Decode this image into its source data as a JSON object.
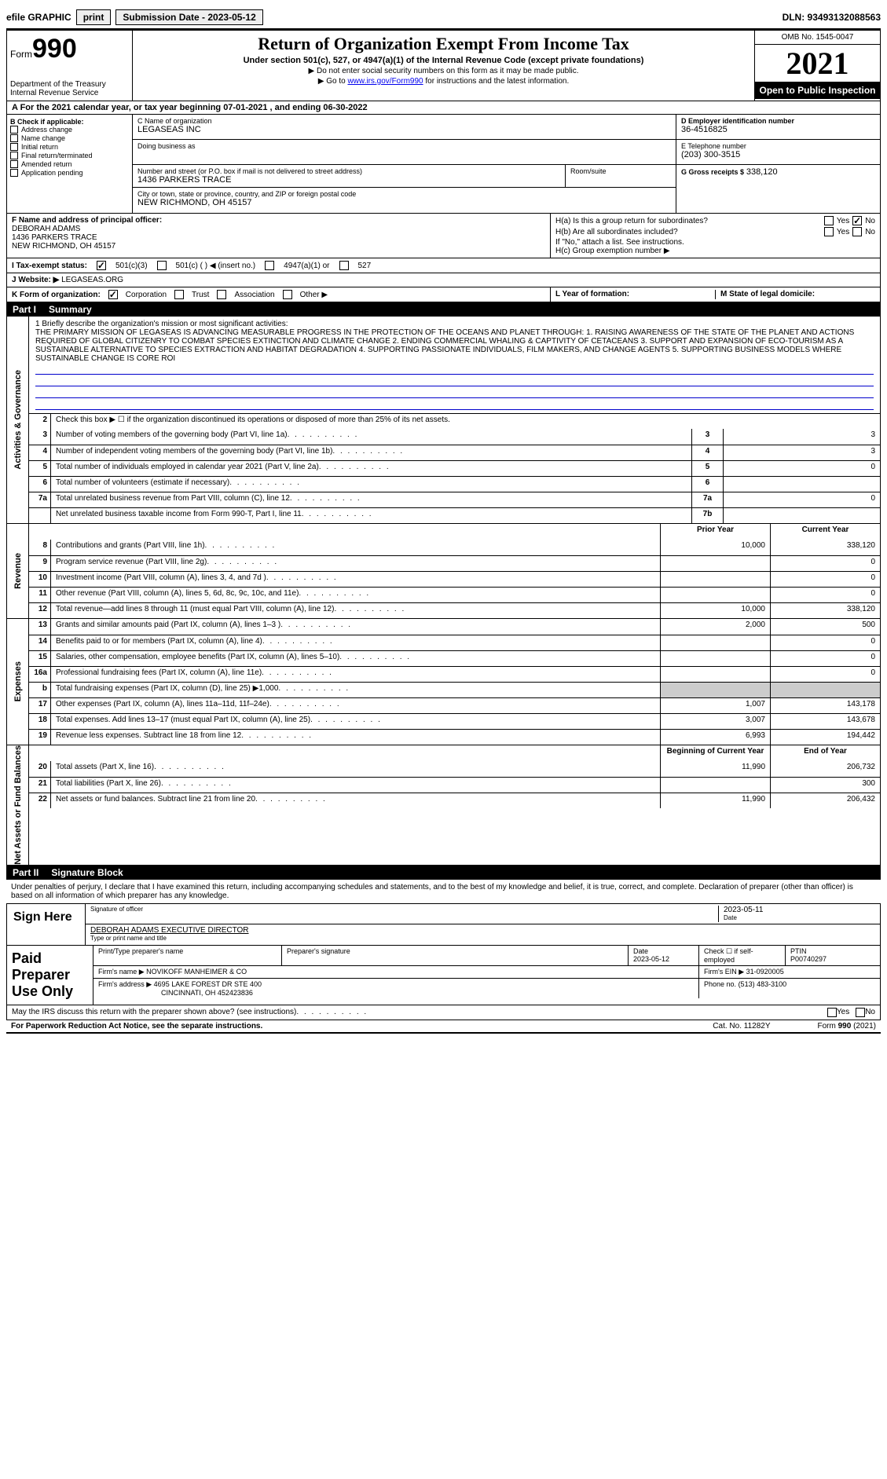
{
  "top": {
    "efile": "efile GRAPHIC",
    "print": "print",
    "sub_label": "Submission Date - 2023-05-12",
    "dln": "DLN: 93493132088563"
  },
  "header": {
    "form": "Form",
    "num": "990",
    "dept": "Department of the Treasury",
    "irs": "Internal Revenue Service",
    "title": "Return of Organization Exempt From Income Tax",
    "sub": "Under section 501(c), 527, or 4947(a)(1) of the Internal Revenue Code (except private foundations)",
    "line1": "▶ Do not enter social security numbers on this form as it may be made public.",
    "line2_pre": "▶ Go to ",
    "line2_link": "www.irs.gov/Form990",
    "line2_post": " for instructions and the latest information.",
    "omb": "OMB No. 1545-0047",
    "year": "2021",
    "open": "Open to Public Inspection"
  },
  "period": "A For the 2021 calendar year, or tax year beginning 07-01-2021  , and ending 06-30-2022",
  "colB": {
    "hdr": "B Check if applicable:",
    "items": [
      "Address change",
      "Name change",
      "Initial return",
      "Final return/terminated",
      "Amended return",
      "Application pending"
    ]
  },
  "colC": {
    "name_lbl": "C Name of organization",
    "name": "LEGASEAS INC",
    "dba_lbl": "Doing business as",
    "dba": "",
    "addr_lbl": "Number and street (or P.O. box if mail is not delivered to street address)",
    "room_lbl": "Room/suite",
    "addr": "1436 PARKERS TRACE",
    "city_lbl": "City or town, state or province, country, and ZIP or foreign postal code",
    "city": "NEW RICHMOND, OH  45157"
  },
  "colD": {
    "ein_lbl": "D Employer identification number",
    "ein": "36-4516825",
    "tel_lbl": "E Telephone number",
    "tel": "(203) 300-3515",
    "gross_lbl": "G Gross receipts $",
    "gross": "338,120"
  },
  "colF": {
    "lbl": "F  Name and address of principal officer:",
    "name": "DEBORAH ADAMS",
    "addr1": "1436 PARKERS TRACE",
    "addr2": "NEW RICHMOND, OH  45157"
  },
  "colH": {
    "a": "H(a)  Is this a group return for subordinates?",
    "b": "H(b)  Are all subordinates included?",
    "b_note": "If \"No,\" attach a list. See instructions.",
    "c": "H(c)  Group exemption number ▶",
    "yes": "Yes",
    "no": "No"
  },
  "rowI": {
    "lbl": "I   Tax-exempt status:",
    "o1": "501(c)(3)",
    "o2": "501(c) (   ) ◀ (insert no.)",
    "o3": "4947(a)(1) or",
    "o4": "527"
  },
  "rowJ": {
    "lbl": "J   Website: ▶",
    "val": "LEGASEAS.ORG"
  },
  "rowK": {
    "lbl": "K Form of organization:",
    "opts": [
      "Corporation",
      "Trust",
      "Association",
      "Other ▶"
    ],
    "L": "L Year of formation:",
    "M": "M State of legal domicile:"
  },
  "part1": {
    "num": "Part I",
    "title": "Summary"
  },
  "mission": {
    "lead": "1   Briefly describe the organization's mission or most significant activities:",
    "text": "THE PRIMARY MISSION OF LEGASEAS IS ADVANCING MEASURABLE PROGRESS IN THE PROTECTION OF THE OCEANS AND PLANET THROUGH: 1. RAISING AWARENESS OF THE STATE OF THE PLANET AND ACTIONS REQUIRED OF GLOBAL CITIZENRY TO COMBAT SPECIES EXTINCTION AND CLIMATE CHANGE 2. ENDING COMMERCIAL WHALING & CAPTIVITY OF CETACEANS 3. SUPPORT AND EXPANSION OF ECO-TOURISM AS A SUSTAINABLE ALTERNATIVE TO SPECIES EXTRACTION AND HABITAT DEGRADATION 4. SUPPORTING PASSIONATE INDIVIDUALS, FILM MAKERS, AND CHANGE AGENTS 5. SUPPORTING BUSINESS MODELS WHERE SUSTAINABLE CHANGE IS CORE ROI"
  },
  "gov": {
    "label": "Activities & Governance",
    "l2": "Check this box ▶ ☐ if the organization discontinued its operations or disposed of more than 25% of its net assets.",
    "rows": [
      {
        "n": "3",
        "d": "Number of voting members of the governing body (Part VI, line 1a)",
        "c": "3",
        "v": "3"
      },
      {
        "n": "4",
        "d": "Number of independent voting members of the governing body (Part VI, line 1b)",
        "c": "4",
        "v": "3"
      },
      {
        "n": "5",
        "d": "Total number of individuals employed in calendar year 2021 (Part V, line 2a)",
        "c": "5",
        "v": "0"
      },
      {
        "n": "6",
        "d": "Total number of volunteers (estimate if necessary)",
        "c": "6",
        "v": ""
      },
      {
        "n": "7a",
        "d": "Total unrelated business revenue from Part VIII, column (C), line 12",
        "c": "7a",
        "v": "0"
      },
      {
        "n": "",
        "d": "Net unrelated business taxable income from Form 990-T, Part I, line 11",
        "c": "7b",
        "v": ""
      }
    ]
  },
  "rev": {
    "label": "Revenue",
    "hdr_prior": "Prior Year",
    "hdr_curr": "Current Year",
    "rows": [
      {
        "n": "8",
        "d": "Contributions and grants (Part VIII, line 1h)",
        "p": "10,000",
        "c": "338,120"
      },
      {
        "n": "9",
        "d": "Program service revenue (Part VIII, line 2g)",
        "p": "",
        "c": "0"
      },
      {
        "n": "10",
        "d": "Investment income (Part VIII, column (A), lines 3, 4, and 7d )",
        "p": "",
        "c": "0"
      },
      {
        "n": "11",
        "d": "Other revenue (Part VIII, column (A), lines 5, 6d, 8c, 9c, 10c, and 11e)",
        "p": "",
        "c": "0"
      },
      {
        "n": "12",
        "d": "Total revenue—add lines 8 through 11 (must equal Part VIII, column (A), line 12)",
        "p": "10,000",
        "c": "338,120"
      }
    ]
  },
  "exp": {
    "label": "Expenses",
    "rows": [
      {
        "n": "13",
        "d": "Grants and similar amounts paid (Part IX, column (A), lines 1–3 )",
        "p": "2,000",
        "c": "500"
      },
      {
        "n": "14",
        "d": "Benefits paid to or for members (Part IX, column (A), line 4)",
        "p": "",
        "c": "0"
      },
      {
        "n": "15",
        "d": "Salaries, other compensation, employee benefits (Part IX, column (A), lines 5–10)",
        "p": "",
        "c": "0"
      },
      {
        "n": "16a",
        "d": "Professional fundraising fees (Part IX, column (A), line 11e)",
        "p": "",
        "c": "0"
      },
      {
        "n": "b",
        "d": "Total fundraising expenses (Part IX, column (D), line 25) ▶1,000",
        "p": "grey",
        "c": "grey"
      },
      {
        "n": "17",
        "d": "Other expenses (Part IX, column (A), lines 11a–11d, 11f–24e)",
        "p": "1,007",
        "c": "143,178"
      },
      {
        "n": "18",
        "d": "Total expenses. Add lines 13–17 (must equal Part IX, column (A), line 25)",
        "p": "3,007",
        "c": "143,678"
      },
      {
        "n": "19",
        "d": "Revenue less expenses. Subtract line 18 from line 12",
        "p": "6,993",
        "c": "194,442"
      }
    ]
  },
  "net": {
    "label": "Net Assets or Fund Balances",
    "hdr_beg": "Beginning of Current Year",
    "hdr_end": "End of Year",
    "rows": [
      {
        "n": "20",
        "d": "Total assets (Part X, line 16)",
        "p": "11,990",
        "c": "206,732"
      },
      {
        "n": "21",
        "d": "Total liabilities (Part X, line 26)",
        "p": "",
        "c": "300"
      },
      {
        "n": "22",
        "d": "Net assets or fund balances. Subtract line 21 from line 20",
        "p": "11,990",
        "c": "206,432"
      }
    ]
  },
  "part2": {
    "num": "Part II",
    "title": "Signature Block"
  },
  "penalty": "Under penalties of perjury, I declare that I have examined this return, including accompanying schedules and statements, and to the best of my knowledge and belief, it is true, correct, and complete. Declaration of preparer (other than officer) is based on all information of which preparer has any knowledge.",
  "sign": {
    "lbl": "Sign Here",
    "sig_of": "Signature of officer",
    "date": "2023-05-11",
    "date_lbl": "Date",
    "name": "DEBORAH ADAMS  EXECUTIVE DIRECTOR",
    "name_lbl": "Type or print name and title"
  },
  "paid": {
    "lbl": "Paid Preparer Use Only",
    "h1": "Print/Type preparer's name",
    "h2": "Preparer's signature",
    "h3": "Date",
    "h3v": "2023-05-12",
    "h4": "Check ☐ if self-employed",
    "h5": "PTIN",
    "h5v": "P00740297",
    "firm_lbl": "Firm's name    ▶",
    "firm": "NOVIKOFF MANHEIMER & CO",
    "ein_lbl": "Firm's EIN ▶",
    "ein": "31-0920005",
    "addr_lbl": "Firm's address ▶",
    "addr1": "4695 LAKE FOREST DR STE 400",
    "addr2": "CINCINNATI, OH  452423836",
    "ph_lbl": "Phone no.",
    "ph": "(513) 483-3100"
  },
  "footer": {
    "discuss": "May the IRS discuss this return with the preparer shown above? (see instructions)",
    "yes": "Yes",
    "no": "No",
    "pra": "For Paperwork Reduction Act Notice, see the separate instructions.",
    "cat": "Cat. No. 11282Y",
    "form": "Form 990 (2021)"
  }
}
